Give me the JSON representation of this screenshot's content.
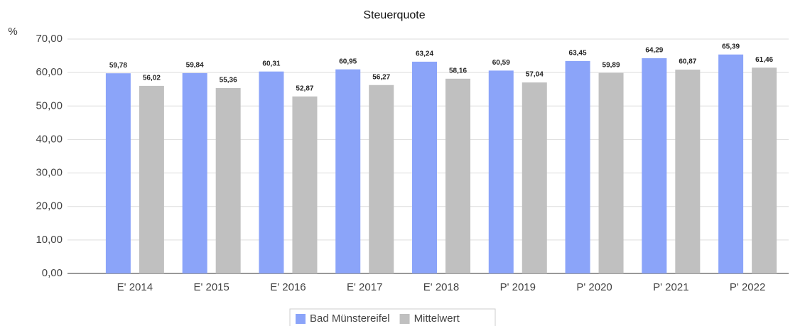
{
  "chart_data": {
    "type": "bar",
    "title": "Steuerquote",
    "y_label": "%",
    "categories": [
      "E' 2014",
      "E' 2015",
      "E' 2016",
      "E' 2017",
      "E' 2018",
      "P' 2019",
      "P' 2020",
      "P' 2021",
      "P' 2022"
    ],
    "series": [
      {
        "name": "Bad Münstereifel",
        "color": "#8ba4f9",
        "values": [
          59.78,
          59.84,
          60.31,
          60.95,
          63.24,
          60.59,
          63.45,
          64.29,
          65.39
        ],
        "value_labels": [
          "59,78",
          "59,84",
          "60,31",
          "60,95",
          "63,24",
          "60,59",
          "63,45",
          "64,29",
          "65,39"
        ]
      },
      {
        "name": "Mittelwert",
        "color": "#c0c0c0",
        "values": [
          56.02,
          55.36,
          52.87,
          56.27,
          58.16,
          57.04,
          59.89,
          60.87,
          61.46
        ],
        "value_labels": [
          "56,02",
          "55,36",
          "52,87",
          "56,27",
          "58,16",
          "57,04",
          "59,89",
          "60,87",
          "61,46"
        ]
      }
    ],
    "ylim": [
      0,
      70
    ],
    "yticks": [
      {
        "value": 0,
        "label": "0,00"
      },
      {
        "value": 10,
        "label": "10,00"
      },
      {
        "value": 20,
        "label": "20,00"
      },
      {
        "value": 30,
        "label": "30,00"
      },
      {
        "value": 40,
        "label": "40,00"
      },
      {
        "value": 50,
        "label": "50,00"
      },
      {
        "value": 60,
        "label": "60,00"
      },
      {
        "value": 70,
        "label": "70,00"
      }
    ],
    "grid": true,
    "legend": "bottom"
  }
}
